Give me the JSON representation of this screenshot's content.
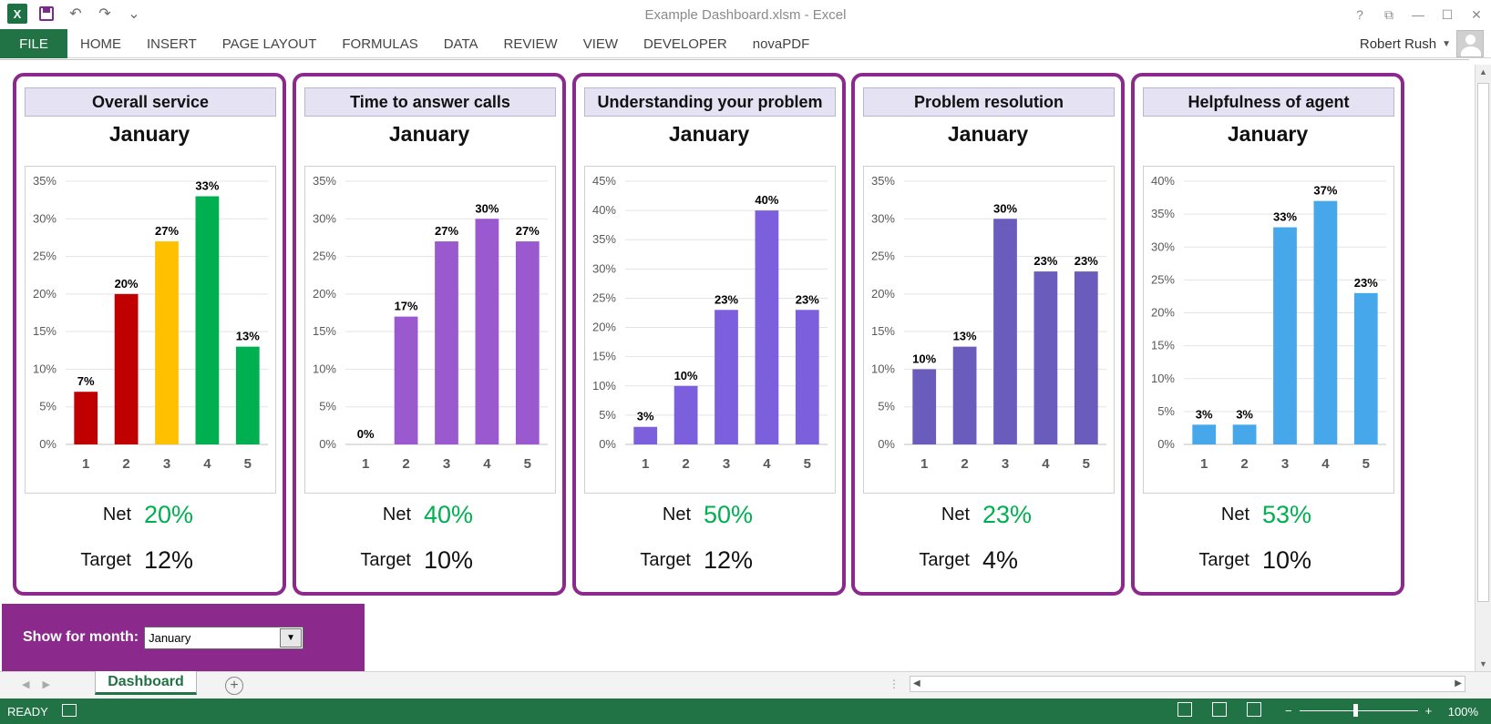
{
  "window": {
    "title": "Example Dashboard.xlsm - Excel",
    "controls": [
      "?",
      "⧉",
      "—",
      "☐",
      "✕"
    ]
  },
  "qat": {
    "logo": "X",
    "undo": "↶",
    "redo": "↷",
    "customize": "⌄"
  },
  "ribbon": {
    "tabs": [
      "FILE",
      "HOME",
      "INSERT",
      "PAGE LAYOUT",
      "FORMULAS",
      "DATA",
      "REVIEW",
      "VIEW",
      "DEVELOPER",
      "novaPDF"
    ],
    "user": "Robert Rush"
  },
  "cards": [
    {
      "title": "Overall service",
      "month": "January",
      "chart_data": {
        "type": "bar",
        "categories": [
          "1",
          "2",
          "3",
          "4",
          "5"
        ],
        "values": [
          7,
          20,
          27,
          33,
          13
        ],
        "labels": [
          "7%",
          "20%",
          "27%",
          "33%",
          "13%"
        ],
        "yticks": [
          "0%",
          "5%",
          "10%",
          "15%",
          "20%",
          "25%",
          "30%",
          "35%"
        ],
        "ylim": [
          0,
          35
        ],
        "colors": [
          "#c00000",
          "#c00000",
          "#ffc000",
          "#00b050",
          "#00b050"
        ]
      },
      "net_label": "Net",
      "net_value": "20%",
      "target_label": "Target",
      "target_value": "12%"
    },
    {
      "title": "Time to answer calls",
      "month": "January",
      "chart_data": {
        "type": "bar",
        "categories": [
          "1",
          "2",
          "3",
          "4",
          "5"
        ],
        "values": [
          0,
          17,
          27,
          30,
          27
        ],
        "labels": [
          "0%",
          "17%",
          "27%",
          "30%",
          "27%"
        ],
        "yticks": [
          "0%",
          "5%",
          "10%",
          "15%",
          "20%",
          "25%",
          "30%",
          "35%"
        ],
        "ylim": [
          0,
          35
        ],
        "colors": [
          "#9b59d0",
          "#9b59d0",
          "#9b59d0",
          "#9b59d0",
          "#9b59d0"
        ]
      },
      "net_label": "Net",
      "net_value": "40%",
      "target_label": "Target",
      "target_value": "10%"
    },
    {
      "title": "Understanding your problem",
      "month": "January",
      "chart_data": {
        "type": "bar",
        "categories": [
          "1",
          "2",
          "3",
          "4",
          "5"
        ],
        "values": [
          3,
          10,
          23,
          40,
          23
        ],
        "labels": [
          "3%",
          "10%",
          "23%",
          "40%",
          "23%"
        ],
        "yticks": [
          "0%",
          "5%",
          "10%",
          "15%",
          "20%",
          "25%",
          "30%",
          "35%",
          "40%",
          "45%"
        ],
        "ylim": [
          0,
          45
        ],
        "colors": [
          "#7b5fdc",
          "#7b5fdc",
          "#7b5fdc",
          "#7b5fdc",
          "#7b5fdc"
        ]
      },
      "net_label": "Net",
      "net_value": "50%",
      "target_label": "Target",
      "target_value": "12%"
    },
    {
      "title": "Problem resolution",
      "month": "January",
      "chart_data": {
        "type": "bar",
        "categories": [
          "1",
          "2",
          "3",
          "4",
          "5"
        ],
        "values": [
          10,
          13,
          30,
          23,
          23
        ],
        "labels": [
          "10%",
          "13%",
          "30%",
          "23%",
          "23%"
        ],
        "yticks": [
          "0%",
          "5%",
          "10%",
          "15%",
          "20%",
          "25%",
          "30%",
          "35%"
        ],
        "ylim": [
          0,
          35
        ],
        "colors": [
          "#6a5cbd",
          "#6a5cbd",
          "#6a5cbd",
          "#6a5cbd",
          "#6a5cbd"
        ]
      },
      "net_label": "Net",
      "net_value": "23%",
      "target_label": "Target",
      "target_value": "4%"
    },
    {
      "title": "Helpfulness of agent",
      "month": "January",
      "chart_data": {
        "type": "bar",
        "categories": [
          "1",
          "2",
          "3",
          "4",
          "5"
        ],
        "values": [
          3,
          3,
          33,
          37,
          23
        ],
        "labels": [
          "3%",
          "3%",
          "33%",
          "37%",
          "23%"
        ],
        "yticks": [
          "0%",
          "5%",
          "10%",
          "15%",
          "20%",
          "25%",
          "30%",
          "35%",
          "40%"
        ],
        "ylim": [
          0,
          40
        ],
        "colors": [
          "#46a7ea",
          "#46a7ea",
          "#46a7ea",
          "#46a7ea",
          "#46a7ea"
        ]
      },
      "net_label": "Net",
      "net_value": "53%",
      "target_label": "Target",
      "target_value": "10%"
    }
  ],
  "selector": {
    "label": "Show for month:",
    "value": "January",
    "dropdown": "▼"
  },
  "sheets": {
    "active": "Dashboard",
    "add": "+"
  },
  "status": {
    "ready": "READY",
    "zoom": "100%",
    "zoom_out": "−",
    "zoom_in": "+"
  }
}
